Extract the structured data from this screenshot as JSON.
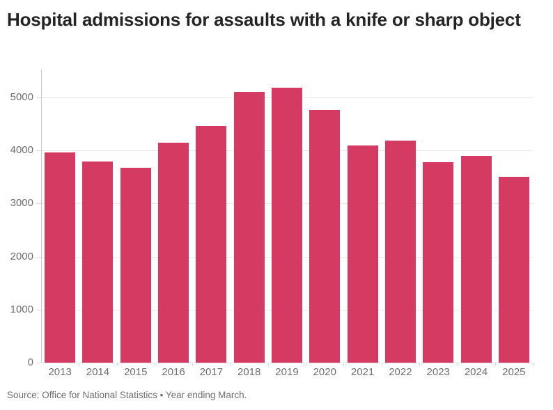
{
  "header": {
    "title": "Hospital admissions for assaults with a knife or sharp object"
  },
  "footer": {
    "source": "Source: Office for National Statistics • Year ending March."
  },
  "colors": {
    "bar": "#d53a63",
    "gridline": "#e6e6e6",
    "axis_line": "#c9c9c9",
    "tick": "#d9d9d9",
    "axis_label": "#6e6e6e",
    "title_text": "#242424",
    "source_text": "#6e6e6e",
    "background": "#ffffff"
  },
  "chart_data": {
    "type": "bar",
    "title": "Hospital admissions for assaults with a knife or sharp object",
    "categories": [
      "2013",
      "2014",
      "2015",
      "2016",
      "2017",
      "2018",
      "2019",
      "2020",
      "2021",
      "2022",
      "2023",
      "2024",
      "2025"
    ],
    "values": [
      3960,
      3790,
      3680,
      4150,
      4460,
      5100,
      5190,
      4760,
      4100,
      4180,
      3780,
      3900,
      3500
    ],
    "xlabel": "",
    "ylabel": "",
    "ylim": [
      0,
      5525
    ],
    "yticks": [
      0,
      1000,
      2000,
      3000,
      4000,
      5000
    ],
    "ytick_labels": [
      "0",
      "1000",
      "2000",
      "3000",
      "4000",
      "5000"
    ],
    "grid": true,
    "legend": false,
    "bar_color": "#d53a63",
    "source": "Source: Office for National Statistics • Year ending March."
  }
}
